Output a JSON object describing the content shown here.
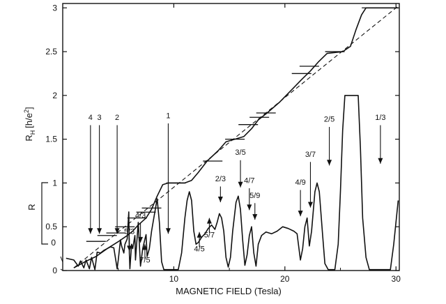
{
  "chart_data": {
    "type": "line",
    "xlabel": "MAGNETIC FIELD (Tesla)",
    "ylabel": "R_H [h/e²]",
    "ylabel_parts": {
      "r": "R",
      "sub": "H",
      "unit": "[h/e",
      "sup": "2",
      "close": "]"
    },
    "y2label": "R",
    "xlim": [
      0,
      30.3
    ],
    "ylim": [
      0,
      3.05
    ],
    "x_ticks": [
      10,
      20,
      30
    ],
    "x_tick_labels": [
      "10",
      "20",
      "30"
    ],
    "y_ticks": [
      0,
      0.5,
      1,
      1.5,
      2,
      2.5,
      3
    ],
    "y_tick_labels": [
      "0",
      "0.5",
      "1",
      "1.5",
      "2",
      "2.5",
      "3"
    ],
    "r_axis_ticks": [
      0
    ],
    "r_axis_tick_labels": [
      "0"
    ],
    "series": [
      {
        "role": "hall",
        "points": [
          [
            1,
            0.03
          ],
          [
            2,
            0.1
          ],
          [
            3,
            0.16
          ],
          [
            4,
            0.25
          ],
          [
            5,
            0.33
          ],
          [
            5.8,
            0.4
          ],
          [
            6.3,
            0.45
          ],
          [
            6.8,
            0.52
          ],
          [
            7.5,
            0.6
          ],
          [
            8,
            0.7
          ],
          [
            8.5,
            0.85
          ],
          [
            9,
            0.98
          ],
          [
            9.5,
            1.0
          ],
          [
            11,
            1.0
          ],
          [
            11.6,
            1.03
          ],
          [
            12.2,
            1.12
          ],
          [
            13,
            1.25
          ],
          [
            14,
            1.37
          ],
          [
            14.7,
            1.47
          ],
          [
            15.5,
            1.5
          ],
          [
            16.3,
            1.53
          ],
          [
            17,
            1.62
          ],
          [
            17.6,
            1.72
          ],
          [
            18.4,
            1.8
          ],
          [
            19.5,
            1.92
          ],
          [
            20.5,
            2.05
          ],
          [
            21.5,
            2.18
          ],
          [
            22.3,
            2.28
          ],
          [
            23,
            2.38
          ],
          [
            23.8,
            2.48
          ],
          [
            25.2,
            2.5
          ],
          [
            25.9,
            2.56
          ],
          [
            26.4,
            2.75
          ],
          [
            26.9,
            2.92
          ],
          [
            27.3,
            3.0
          ],
          [
            30.2,
            3.0
          ]
        ]
      },
      {
        "role": "hall-reference",
        "points": [
          [
            1,
            0.03
          ],
          [
            30.2,
            3.02
          ]
        ]
      },
      {
        "role": "longitudinal",
        "points": [
          [
            0.3,
            0.14
          ],
          [
            1,
            0.12
          ],
          [
            1.4,
            0.05
          ],
          [
            1.6,
            0.11
          ],
          [
            1.9,
            0.03
          ],
          [
            2.1,
            0.12
          ],
          [
            2.4,
            0.02
          ],
          [
            2.6,
            0.15
          ],
          [
            2.9,
            0.01
          ],
          [
            3.1,
            0.21
          ],
          [
            3.4,
            0.2
          ],
          [
            3.7,
            0.23
          ],
          [
            4,
            0.25
          ],
          [
            4.3,
            0.27
          ],
          [
            4.6,
            0.26
          ],
          [
            4.8,
            0.1
          ],
          [
            4.9,
            0.02
          ],
          [
            5,
            0.12
          ],
          [
            5.2,
            0.35
          ],
          [
            5.3,
            0.28
          ],
          [
            5.5,
            0.2
          ],
          [
            5.6,
            0.3
          ],
          [
            5.8,
            0.36
          ],
          [
            5.95,
            0.67
          ],
          [
            6,
            0.2
          ],
          [
            6.05,
            0.02
          ],
          [
            6.2,
            0.3
          ],
          [
            6.3,
            0.25
          ],
          [
            6.5,
            0.4
          ],
          [
            6.55,
            0.12
          ],
          [
            6.7,
            0.38
          ],
          [
            6.8,
            0.55
          ],
          [
            6.9,
            0.3
          ],
          [
            7,
            0.05
          ],
          [
            7.2,
            0.25
          ],
          [
            7.4,
            0.36
          ],
          [
            7.5,
            0.41
          ],
          [
            7.6,
            0.16
          ],
          [
            7.8,
            0.25
          ],
          [
            8,
            0.45
          ],
          [
            8.2,
            0.6
          ],
          [
            8.5,
            0.82
          ],
          [
            8.7,
            0.55
          ],
          [
            8.9,
            0.1
          ],
          [
            9.1,
            0.01
          ],
          [
            10.4,
            0.01
          ],
          [
            10.7,
            0.2
          ],
          [
            11.0,
            0.6
          ],
          [
            11.2,
            0.8
          ],
          [
            11.4,
            0.9
          ],
          [
            11.6,
            0.8
          ],
          [
            11.8,
            0.45
          ],
          [
            12,
            0.3
          ],
          [
            12.2,
            0.32
          ],
          [
            12.5,
            0.38
          ],
          [
            12.8,
            0.42
          ],
          [
            13.1,
            0.48
          ],
          [
            13.4,
            0.52
          ],
          [
            13.7,
            0.47
          ],
          [
            13.9,
            0.55
          ],
          [
            14.1,
            0.65
          ],
          [
            14.3,
            0.6
          ],
          [
            14.5,
            0.45
          ],
          [
            14.7,
            0.15
          ],
          [
            14.9,
            0.04
          ],
          [
            15.1,
            0.15
          ],
          [
            15.3,
            0.45
          ],
          [
            15.6,
            0.78
          ],
          [
            15.8,
            0.85
          ],
          [
            16,
            0.7
          ],
          [
            16.2,
            0.35
          ],
          [
            16.4,
            0.06
          ],
          [
            16.6,
            0.18
          ],
          [
            16.8,
            0.4
          ],
          [
            17,
            0.5
          ],
          [
            17.2,
            0.2
          ],
          [
            17.4,
            0.05
          ],
          [
            17.6,
            0.3
          ],
          [
            17.9,
            0.4
          ],
          [
            18.3,
            0.44
          ],
          [
            18.8,
            0.42
          ],
          [
            19.3,
            0.45
          ],
          [
            19.8,
            0.5
          ],
          [
            20.3,
            0.48
          ],
          [
            20.8,
            0.45
          ],
          [
            21.1,
            0.42
          ],
          [
            21.4,
            0.12
          ],
          [
            21.6,
            0.25
          ],
          [
            21.8,
            0.5
          ],
          [
            22.0,
            0.6
          ],
          [
            22.2,
            0.28
          ],
          [
            22.4,
            0.45
          ],
          [
            22.7,
            0.9
          ],
          [
            22.9,
            1.0
          ],
          [
            23.1,
            0.9
          ],
          [
            23.4,
            0.4
          ],
          [
            23.6,
            0.08
          ],
          [
            23.9,
            0.01
          ],
          [
            24.5,
            0.01
          ],
          [
            24.8,
            0.3
          ],
          [
            25,
            0.9
          ],
          [
            25.2,
            1.6
          ],
          [
            25.4,
            2.0
          ],
          [
            26.6,
            2.0
          ],
          [
            26.8,
            1.4
          ],
          [
            27,
            0.6
          ],
          [
            27.3,
            0.15
          ],
          [
            27.6,
            0.01
          ],
          [
            29.5,
            0.01
          ],
          [
            29.8,
            0.3
          ],
          [
            30.2,
            0.8
          ]
        ]
      }
    ],
    "plateau_ticks": [
      {
        "x": 3.0,
        "y": 0.333
      },
      {
        "x": 4.0,
        "y": 0.4
      },
      {
        "x": 4.8,
        "y": 0.429
      },
      {
        "x": 5.6,
        "y": 0.5
      },
      {
        "x": 6.7,
        "y": 0.6
      },
      {
        "x": 7.5,
        "y": 0.667
      },
      {
        "x": 8.0,
        "y": 0.714
      },
      {
        "x": 10.2,
        "y": 1.0
      },
      {
        "x": 13.5,
        "y": 1.25
      },
      {
        "x": 15.5,
        "y": 1.5
      },
      {
        "x": 16.7,
        "y": 1.667
      },
      {
        "x": 17.7,
        "y": 1.75
      },
      {
        "x": 18.3,
        "y": 1.8
      },
      {
        "x": 21.5,
        "y": 2.25
      },
      {
        "x": 22.2,
        "y": 2.333
      },
      {
        "x": 24.5,
        "y": 2.5
      },
      {
        "x": 27.8,
        "y": 3.0
      }
    ],
    "annotations": [
      {
        "text": "4",
        "x": 2.5,
        "dir": "down",
        "label_y": 1.72,
        "arrow_top": 1.66,
        "arrow_tip": 0.42
      },
      {
        "text": "3",
        "x": 3.3,
        "dir": "down",
        "label_y": 1.72,
        "arrow_top": 1.66,
        "arrow_tip": 0.42
      },
      {
        "text": "2",
        "x": 4.9,
        "dir": "down",
        "label_y": 1.72,
        "arrow_top": 1.66,
        "arrow_tip": 0.42
      },
      {
        "text": "1",
        "x": 9.5,
        "dir": "down",
        "label_y": 1.74,
        "arrow_top": 1.68,
        "arrow_tip": 0.42
      },
      {
        "text": "5/3",
        "x": 6.0,
        "dir": "down",
        "label_y": 0.42,
        "arrow_top": 0.37,
        "arrow_tip": 0.22
      },
      {
        "text": "4/3",
        "x": 7.0,
        "dir": "down",
        "label_y": 0.6,
        "arrow_top": 0.54,
        "arrow_tip": 0.32
      },
      {
        "text": "7/5",
        "x": 7.4,
        "dir": "up",
        "label_y": 0.09,
        "arrow_top": 0.3,
        "arrow_tip": 0.13
      },
      {
        "text": "4/5",
        "x": 12.3,
        "dir": "up",
        "label_y": 0.22,
        "arrow_top": 0.44,
        "arrow_tip": 0.27
      },
      {
        "text": "5/7",
        "x": 13.2,
        "dir": "up",
        "label_y": 0.38,
        "arrow_top": 0.6,
        "arrow_tip": 0.43
      },
      {
        "text": "2/3",
        "x": 14.2,
        "dir": "down",
        "label_y": 1.02,
        "arrow_top": 0.96,
        "arrow_tip": 0.78
      },
      {
        "text": "3/5",
        "x": 16.0,
        "dir": "down",
        "label_y": 1.32,
        "arrow_top": 1.26,
        "arrow_tip": 0.95
      },
      {
        "text": "4/7",
        "x": 16.8,
        "dir": "down",
        "label_y": 1.0,
        "arrow_top": 0.94,
        "arrow_tip": 0.69
      },
      {
        "text": "5/9",
        "x": 17.3,
        "dir": "down",
        "label_y": 0.83,
        "arrow_top": 0.77,
        "arrow_tip": 0.58
      },
      {
        "text": "4/9",
        "x": 21.4,
        "dir": "down",
        "label_y": 0.98,
        "arrow_top": 0.92,
        "arrow_tip": 0.62
      },
      {
        "text": "3/7",
        "x": 22.3,
        "dir": "down",
        "label_y": 1.3,
        "arrow_top": 1.24,
        "arrow_tip": 0.72
      },
      {
        "text": "2/5",
        "x": 24.0,
        "dir": "down",
        "label_y": 1.7,
        "arrow_top": 1.64,
        "arrow_tip": 1.2
      },
      {
        "text": "1/3",
        "x": 28.6,
        "dir": "down",
        "label_y": 1.72,
        "arrow_top": 1.66,
        "arrow_tip": 1.22
      }
    ]
  }
}
